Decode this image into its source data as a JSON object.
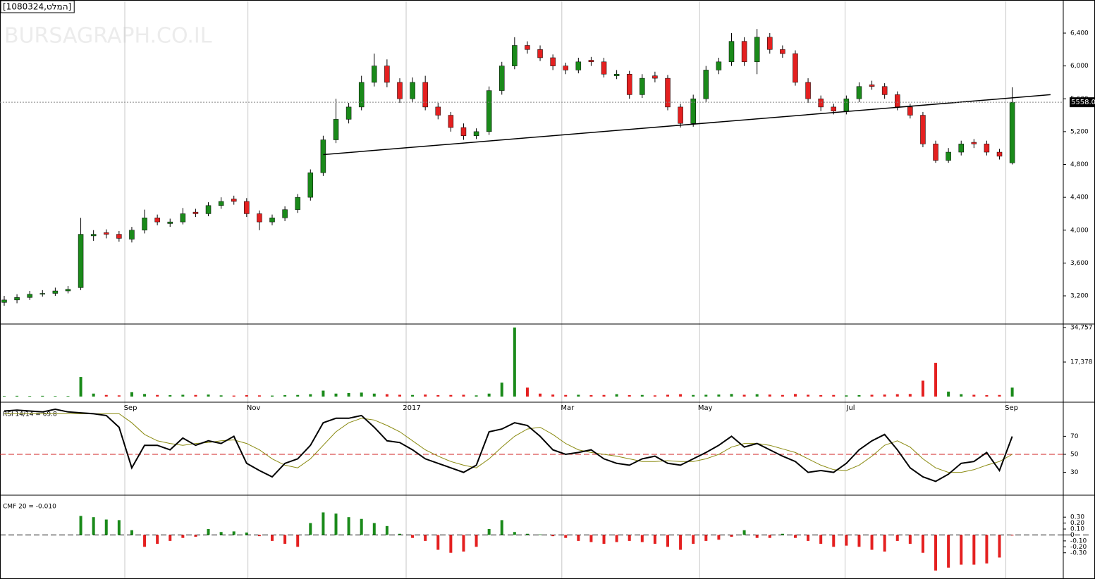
{
  "title": "[1080324,המלט]",
  "watermark": "BURSAGRAPH.CO.IL",
  "chart_data": [
    {
      "type": "candlestick",
      "xlim": [
        -0.22,
        83
      ],
      "ylim": [
        2857,
        6786
      ],
      "yticks": [
        {
          "value": 3200,
          "label": "3,200"
        },
        {
          "value": 3600,
          "label": "3,600"
        },
        {
          "value": 4000,
          "label": "4,000"
        },
        {
          "value": 4400,
          "label": "4,400"
        },
        {
          "value": 4800,
          "label": "4,800"
        },
        {
          "value": 5200,
          "label": "5,200"
        },
        {
          "value": 5600,
          "label": "5,600"
        },
        {
          "value": 6000,
          "label": "6,000"
        },
        {
          "value": 6400,
          "label": "6,400"
        }
      ],
      "up_color": "#1a8a1a",
      "down_color": "#e42020",
      "open": [
        3120,
        3150,
        3180,
        3220,
        3230,
        3260,
        3300,
        3930,
        3970,
        3950,
        3890,
        4000,
        4150,
        4080,
        4100,
        4220,
        4200,
        4300,
        4380,
        4350,
        4200,
        4100,
        4150,
        4250,
        4400,
        4700,
        5100,
        5350,
        5500,
        5800,
        6000,
        5800,
        5600,
        5800,
        5500,
        5400,
        5250,
        5150,
        5200,
        5700,
        6000,
        6250,
        6200,
        6100,
        6000,
        5950,
        6070,
        6050,
        5880,
        5900,
        5650,
        5880,
        5850,
        5500,
        5300,
        5600,
        5950,
        6050,
        6300,
        6050,
        6350,
        6200,
        6150,
        5800,
        5600,
        5500,
        5450,
        5600,
        5770,
        5750,
        5650,
        5500,
        5400,
        5050,
        4850,
        4950,
        5070,
        5050,
        4950,
        4820
      ],
      "high": [
        3200,
        3220,
        3260,
        3270,
        3300,
        3320,
        4150,
        4000,
        4010,
        3990,
        4040,
        4250,
        4190,
        4140,
        4270,
        4260,
        4340,
        4400,
        4420,
        4390,
        4240,
        4190,
        4290,
        4440,
        4740,
        5150,
        5600,
        5550,
        5880,
        6150,
        6080,
        5850,
        5860,
        5880,
        5550,
        5440,
        5300,
        5240,
        5750,
        6050,
        6350,
        6300,
        6250,
        6140,
        6040,
        6100,
        6110,
        6100,
        5950,
        5940,
        5900,
        5930,
        5890,
        5540,
        5650,
        6000,
        6100,
        6400,
        6350,
        6450,
        6400,
        6250,
        6190,
        5850,
        5640,
        5540,
        5640,
        5800,
        5820,
        5790,
        5690,
        5540,
        5440,
        5090,
        5000,
        5090,
        5110,
        5090,
        4990,
        5740
      ],
      "low": [
        3080,
        3110,
        3150,
        3190,
        3200,
        3230,
        3270,
        3870,
        3900,
        3860,
        3850,
        3960,
        4060,
        4040,
        4070,
        4160,
        4170,
        4260,
        4310,
        4160,
        4000,
        4060,
        4110,
        4210,
        4360,
        4660,
        5060,
        5300,
        5460,
        5750,
        5740,
        5550,
        5560,
        5460,
        5350,
        5200,
        5100,
        5110,
        5160,
        5650,
        5960,
        6150,
        6060,
        5950,
        5900,
        5910,
        6000,
        5860,
        5840,
        5600,
        5610,
        5800,
        5460,
        5250,
        5260,
        5560,
        5900,
        6000,
        6000,
        5900,
        6150,
        6100,
        5760,
        5550,
        5450,
        5410,
        5410,
        5560,
        5710,
        5600,
        5460,
        5360,
        5010,
        4820,
        4820,
        4910,
        5000,
        4910,
        4860,
        4800
      ],
      "close": [
        3150,
        3180,
        3220,
        3230,
        3260,
        3280,
        3950,
        3950,
        3950,
        3900,
        4000,
        4150,
        4100,
        4100,
        4200,
        4200,
        4300,
        4350,
        4350,
        4200,
        4100,
        4150,
        4250,
        4400,
        4700,
        5100,
        5350,
        5500,
        5800,
        6000,
        5800,
        5600,
        5800,
        5500,
        5400,
        5250,
        5150,
        5200,
        5700,
        6000,
        6250,
        6200,
        6100,
        6000,
        5950,
        6050,
        6050,
        5900,
        5900,
        5650,
        5850,
        5850,
        5500,
        5300,
        5600,
        5950,
        6050,
        6300,
        6050,
        6350,
        6200,
        6150,
        5800,
        5600,
        5500,
        5450,
        5600,
        5750,
        5750,
        5650,
        5500,
        5400,
        5050,
        4850,
        4950,
        5050,
        5050,
        4950,
        4900,
        5558
      ],
      "trendline": {
        "x": [
          25,
          82
        ],
        "y": [
          4920,
          5650
        ],
        "color": "#000000"
      },
      "last_value": 5558,
      "last_label": "5558.0"
    },
    {
      "type": "bar",
      "xlim": [
        -0.22,
        83
      ],
      "ylim": [
        0,
        36530
      ],
      "yticks": [
        {
          "value": 17378,
          "label": "17,378"
        },
        {
          "value": 34757,
          "label": "34,757"
        }
      ],
      "xticks": [
        {
          "value": 9.45,
          "label": "Sep"
        },
        {
          "value": 19.1,
          "label": "Nov"
        },
        {
          "value": 31.5,
          "label": "2017"
        },
        {
          "value": 43.7,
          "label": "Mar"
        },
        {
          "value": 54.5,
          "label": "May"
        },
        {
          "value": 65.9,
          "label": "Jul"
        },
        {
          "value": 78.5,
          "label": "Sep"
        }
      ],
      "up_color": "#1a8a1a",
      "down_color": "#e42020",
      "values": [
        300,
        400,
        300,
        400,
        300,
        300,
        9900,
        1500,
        800,
        600,
        2200,
        1300,
        800,
        700,
        900,
        800,
        1000,
        600,
        500,
        700,
        600,
        500,
        700,
        800,
        1200,
        3000,
        1500,
        1800,
        2000,
        1500,
        1200,
        900,
        800,
        1000,
        700,
        800,
        900,
        600,
        1500,
        7000,
        34757,
        4500,
        1500,
        1000,
        800,
        900,
        700,
        800,
        1200,
        700,
        800,
        600,
        900,
        1200,
        800,
        900,
        1000,
        1300,
        900,
        1200,
        1000,
        800,
        1300,
        900,
        700,
        800,
        600,
        700,
        900,
        1000,
        1200,
        1300,
        8000,
        17000,
        2500,
        1200,
        900,
        700,
        800,
        4500
      ]
    },
    {
      "type": "line",
      "label": "RSI 14/14 = 69.8",
      "xlim": [
        -0.22,
        83
      ],
      "ylim": [
        4.7,
        107
      ],
      "yticks": [
        30,
        50,
        70
      ],
      "ref_line": 50,
      "ref_color": "#d02020",
      "series": [
        {
          "color": "#000000",
          "values": [
            98,
            99,
            98,
            97,
            100,
            97,
            96,
            95,
            93,
            80,
            35,
            60,
            60,
            55,
            68,
            60,
            65,
            62,
            70,
            40,
            32,
            25,
            40,
            45,
            60,
            85,
            90,
            90,
            93,
            80,
            65,
            63,
            55,
            45,
            40,
            35,
            30,
            38,
            75,
            78,
            85,
            82,
            70,
            55,
            50,
            52,
            55,
            45,
            40,
            38,
            45,
            48,
            40,
            38,
            45,
            52,
            60,
            70,
            58,
            62,
            55,
            48,
            42,
            30,
            32,
            30,
            40,
            55,
            65,
            72,
            55,
            35,
            25,
            20,
            28,
            40,
            42,
            52,
            32,
            69.8
          ]
        },
        {
          "color": "#8a8a10",
          "values": [
            95,
            95,
            95,
            95,
            95,
            95,
            95,
            95,
            95,
            95,
            85,
            72,
            65,
            62,
            60,
            62,
            63,
            65,
            66,
            62,
            55,
            45,
            38,
            35,
            45,
            60,
            75,
            85,
            90,
            88,
            82,
            75,
            65,
            55,
            48,
            42,
            38,
            35,
            45,
            58,
            70,
            78,
            80,
            72,
            62,
            55,
            52,
            50,
            48,
            45,
            42,
            42,
            43,
            42,
            42,
            45,
            50,
            58,
            62,
            62,
            60,
            56,
            52,
            45,
            38,
            33,
            32,
            38,
            48,
            60,
            65,
            58,
            45,
            35,
            30,
            30,
            33,
            38,
            42,
            50
          ]
        }
      ]
    },
    {
      "type": "bar",
      "label": "CMF 20 = -0.010",
      "xlim": [
        -0.22,
        83
      ],
      "ylim": [
        -0.73,
        0.67
      ],
      "yticks": [
        {
          "value": 0.3,
          "label": "0.30"
        },
        {
          "value": 0.2,
          "label": "0.20"
        },
        {
          "value": 0.1,
          "label": "0.10"
        },
        0,
        {
          "value": -0.1,
          "label": "-0.10"
        },
        {
          "value": -0.2,
          "label": "-0.20"
        },
        {
          "value": -0.3,
          "label": "-0.30"
        }
      ],
      "up_color": "#1a8a1a",
      "down_color": "#e42020",
      "values": [
        null,
        null,
        null,
        null,
        null,
        null,
        0.32,
        0.3,
        0.26,
        0.25,
        0.08,
        -0.2,
        -0.15,
        -0.1,
        -0.05,
        -0.03,
        0.1,
        0.05,
        0.06,
        0.04,
        -0.02,
        -0.1,
        -0.15,
        -0.2,
        0.2,
        0.38,
        0.36,
        0.3,
        0.27,
        0.2,
        0.15,
        0.02,
        -0.05,
        -0.1,
        -0.25,
        -0.3,
        -0.28,
        -0.2,
        0.1,
        0.25,
        0.05,
        0.02,
        0.01,
        -0.02,
        -0.05,
        -0.1,
        -0.12,
        -0.15,
        -0.12,
        -0.1,
        -0.12,
        -0.15,
        -0.2,
        -0.25,
        -0.15,
        -0.1,
        -0.08,
        -0.03,
        0.08,
        -0.05,
        -0.05,
        0.02,
        -0.05,
        -0.1,
        -0.15,
        -0.2,
        -0.18,
        -0.2,
        -0.25,
        -0.28,
        -0.1,
        -0.15,
        -0.3,
        -0.6,
        -0.55,
        -0.5,
        -0.5,
        -0.48,
        -0.38,
        -0.01
      ]
    }
  ]
}
